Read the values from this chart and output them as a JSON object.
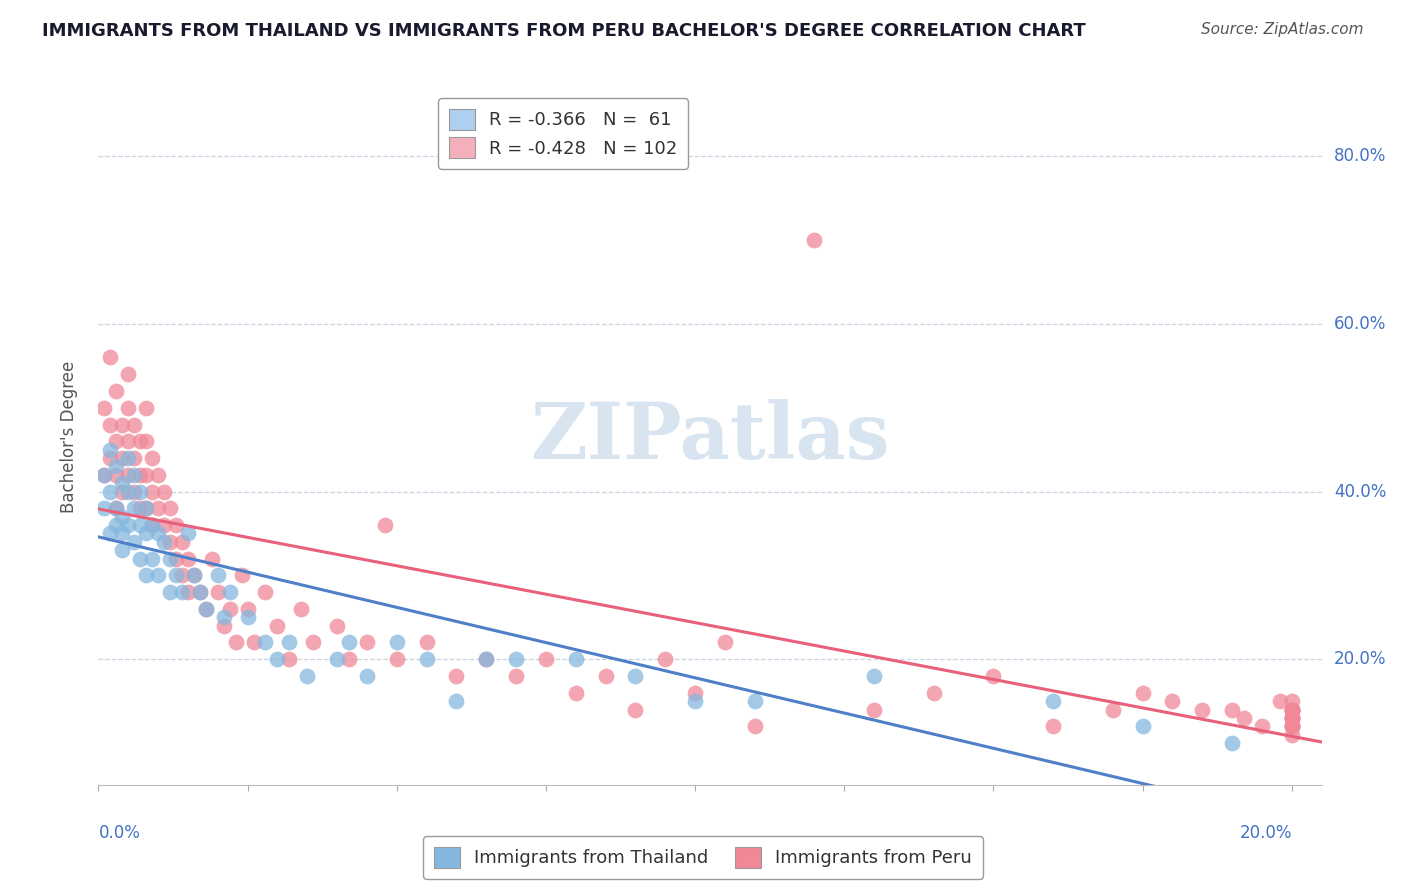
{
  "title": "IMMIGRANTS FROM THAILAND VS IMMIGRANTS FROM PERU BACHELOR'S DEGREE CORRELATION CHART",
  "source": "Source: ZipAtlas.com",
  "ylabel": "Bachelor's Degree",
  "xlim": [
    0.0,
    0.205
  ],
  "ylim": [
    0.05,
    0.88
  ],
  "ytick_vals": [
    0.2,
    0.4,
    0.6,
    0.8
  ],
  "legend_line1": "R = -0.366   N =  61",
  "legend_line2": "R = -0.428   N = 102",
  "thailand_color": "#85b7de",
  "peru_color": "#f08898",
  "thailand_line_color": "#4f7fc8",
  "peru_line_color": "#e8607a",
  "thailand_legend_color": "#aed0f0",
  "peru_legend_color": "#f4b0ba",
  "right_label_color": "#4472c4",
  "watermark": "ZIPatlas",
  "watermark_color": "#d8e4f0",
  "grid_color": "#c0d0e0",
  "title_color": "#1a1a2e",
  "source_color": "#555555",
  "background_color": "#ffffff",
  "thailand_x": [
    0.001,
    0.001,
    0.002,
    0.002,
    0.002,
    0.003,
    0.003,
    0.003,
    0.004,
    0.004,
    0.004,
    0.004,
    0.005,
    0.005,
    0.005,
    0.006,
    0.006,
    0.006,
    0.007,
    0.007,
    0.007,
    0.008,
    0.008,
    0.008,
    0.009,
    0.009,
    0.01,
    0.01,
    0.011,
    0.012,
    0.012,
    0.013,
    0.014,
    0.015,
    0.016,
    0.017,
    0.018,
    0.02,
    0.021,
    0.022,
    0.025,
    0.028,
    0.03,
    0.032,
    0.035,
    0.04,
    0.042,
    0.045,
    0.05,
    0.055,
    0.06,
    0.065,
    0.07,
    0.08,
    0.09,
    0.1,
    0.11,
    0.13,
    0.16,
    0.175,
    0.19
  ],
  "thailand_y": [
    0.38,
    0.42,
    0.45,
    0.4,
    0.35,
    0.43,
    0.38,
    0.36,
    0.41,
    0.37,
    0.35,
    0.33,
    0.44,
    0.4,
    0.36,
    0.42,
    0.38,
    0.34,
    0.4,
    0.36,
    0.32,
    0.38,
    0.35,
    0.3,
    0.36,
    0.32,
    0.35,
    0.3,
    0.34,
    0.32,
    0.28,
    0.3,
    0.28,
    0.35,
    0.3,
    0.28,
    0.26,
    0.3,
    0.25,
    0.28,
    0.25,
    0.22,
    0.2,
    0.22,
    0.18,
    0.2,
    0.22,
    0.18,
    0.22,
    0.2,
    0.15,
    0.2,
    0.2,
    0.2,
    0.18,
    0.15,
    0.15,
    0.18,
    0.15,
    0.12,
    0.1
  ],
  "peru_x": [
    0.001,
    0.001,
    0.002,
    0.002,
    0.002,
    0.003,
    0.003,
    0.003,
    0.003,
    0.004,
    0.004,
    0.004,
    0.005,
    0.005,
    0.005,
    0.005,
    0.006,
    0.006,
    0.006,
    0.007,
    0.007,
    0.007,
    0.008,
    0.008,
    0.008,
    0.008,
    0.009,
    0.009,
    0.009,
    0.01,
    0.01,
    0.011,
    0.011,
    0.012,
    0.012,
    0.013,
    0.013,
    0.014,
    0.014,
    0.015,
    0.015,
    0.016,
    0.017,
    0.018,
    0.019,
    0.02,
    0.021,
    0.022,
    0.023,
    0.024,
    0.025,
    0.026,
    0.028,
    0.03,
    0.032,
    0.034,
    0.036,
    0.04,
    0.042,
    0.045,
    0.048,
    0.05,
    0.055,
    0.06,
    0.065,
    0.07,
    0.075,
    0.08,
    0.085,
    0.09,
    0.095,
    0.1,
    0.105,
    0.11,
    0.12,
    0.13,
    0.14,
    0.15,
    0.16,
    0.17,
    0.175,
    0.18,
    0.185,
    0.19,
    0.192,
    0.195,
    0.198,
    0.2,
    0.2,
    0.2,
    0.2,
    0.2,
    0.2,
    0.2,
    0.2,
    0.2,
    0.2,
    0.2,
    0.2,
    0.2,
    0.2,
    0.2
  ],
  "peru_y": [
    0.5,
    0.42,
    0.56,
    0.48,
    0.44,
    0.52,
    0.46,
    0.42,
    0.38,
    0.48,
    0.44,
    0.4,
    0.54,
    0.5,
    0.46,
    0.42,
    0.48,
    0.44,
    0.4,
    0.46,
    0.42,
    0.38,
    0.5,
    0.46,
    0.42,
    0.38,
    0.44,
    0.4,
    0.36,
    0.42,
    0.38,
    0.4,
    0.36,
    0.38,
    0.34,
    0.36,
    0.32,
    0.34,
    0.3,
    0.32,
    0.28,
    0.3,
    0.28,
    0.26,
    0.32,
    0.28,
    0.24,
    0.26,
    0.22,
    0.3,
    0.26,
    0.22,
    0.28,
    0.24,
    0.2,
    0.26,
    0.22,
    0.24,
    0.2,
    0.22,
    0.36,
    0.2,
    0.22,
    0.18,
    0.2,
    0.18,
    0.2,
    0.16,
    0.18,
    0.14,
    0.2,
    0.16,
    0.22,
    0.12,
    0.7,
    0.14,
    0.16,
    0.18,
    0.12,
    0.14,
    0.16,
    0.15,
    0.14,
    0.14,
    0.13,
    0.12,
    0.15,
    0.14,
    0.13,
    0.12,
    0.11,
    0.12,
    0.14,
    0.13,
    0.15,
    0.14,
    0.12,
    0.13,
    0.14,
    0.12,
    0.13,
    0.14
  ]
}
